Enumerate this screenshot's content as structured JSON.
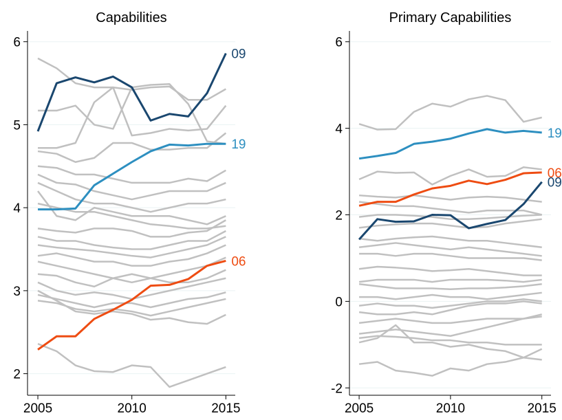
{
  "chart_data": [
    {
      "type": "line",
      "title": "Capabilities",
      "x": [
        2005,
        2006,
        2007,
        2008,
        2009,
        2010,
        2011,
        2012,
        2013,
        2014,
        2015
      ],
      "xlim": [
        2004.45,
        2015.5
      ],
      "xticks": [
        2005,
        2010,
        2015
      ],
      "ylim": [
        1.74,
        6.13
      ],
      "yticks": [
        2,
        3,
        4,
        5,
        6
      ],
      "grid": true,
      "series": [
        {
          "color": "#c0c0c0",
          "values": [
            5.8,
            5.68,
            5.5,
            5.45,
            5.45,
            5.42,
            5.45,
            5.46,
            5.3,
            5.3,
            5.43
          ]
        },
        {
          "color": "#c0c0c0",
          "values": [
            5.17,
            5.17,
            5.23,
            5.0,
            4.95,
            5.45,
            5.48,
            5.49,
            5.25,
            4.8,
            4.77
          ]
        },
        {
          "color": "#c0c0c0",
          "values": [
            4.72,
            4.72,
            4.78,
            5.27,
            5.45,
            4.87,
            4.9,
            4.95,
            4.93,
            4.95,
            5.23
          ]
        },
        {
          "color": "#c0c0c0",
          "values": [
            4.68,
            4.65,
            4.55,
            4.6,
            4.78,
            4.78,
            4.7,
            4.7,
            4.72,
            4.72,
            4.9
          ]
        },
        {
          "color": "#c0c0c0",
          "values": [
            4.5,
            4.48,
            4.4,
            4.4,
            4.35,
            4.3,
            4.3,
            4.3,
            4.35,
            4.32,
            4.45
          ]
        },
        {
          "color": "#c0c0c0",
          "values": [
            4.4,
            4.3,
            4.28,
            4.2,
            4.15,
            4.1,
            4.15,
            4.2,
            4.2,
            4.2,
            4.3
          ]
        },
        {
          "color": "#c0c0c0",
          "values": [
            4.3,
            4.2,
            4.1,
            4.05,
            4.05,
            4.0,
            3.95,
            4.0,
            4.05,
            4.05,
            4.1
          ]
        },
        {
          "color": "#c0c0c0",
          "values": [
            4.2,
            3.9,
            3.85,
            4.0,
            3.95,
            3.9,
            3.9,
            3.9,
            3.85,
            3.8,
            3.9
          ]
        },
        {
          "color": "#c0c0c0",
          "values": [
            4.05,
            4.0,
            3.95,
            3.95,
            3.9,
            3.85,
            3.8,
            3.78,
            3.75,
            3.75,
            3.78
          ]
        },
        {
          "color": "#c0c0c0",
          "values": [
            3.75,
            3.72,
            3.7,
            3.75,
            3.75,
            3.72,
            3.65,
            3.65,
            3.7,
            3.72,
            3.85
          ]
        },
        {
          "color": "#c0c0c0",
          "values": [
            3.65,
            3.6,
            3.6,
            3.55,
            3.52,
            3.5,
            3.5,
            3.55,
            3.6,
            3.6,
            3.72
          ]
        },
        {
          "color": "#c0c0c0",
          "values": [
            3.55,
            3.52,
            3.5,
            3.48,
            3.45,
            3.42,
            3.4,
            3.45,
            3.5,
            3.55,
            3.65
          ]
        },
        {
          "color": "#c0c0c0",
          "values": [
            3.42,
            3.45,
            3.4,
            3.35,
            3.35,
            3.3,
            3.3,
            3.35,
            3.38,
            3.45,
            3.55
          ]
        },
        {
          "color": "#c0c0c0",
          "values": [
            3.35,
            3.3,
            3.25,
            3.2,
            3.15,
            3.1,
            3.15,
            3.2,
            3.25,
            3.3,
            3.4
          ]
        },
        {
          "color": "#c0c0c0",
          "values": [
            3.2,
            3.18,
            3.1,
            3.05,
            3.15,
            3.2,
            3.15,
            3.1,
            3.1,
            3.15,
            3.25
          ]
        },
        {
          "color": "#c0c0c0",
          "values": [
            3.1,
            3.0,
            2.95,
            2.98,
            2.95,
            2.9,
            2.95,
            3.0,
            3.05,
            3.1,
            3.15
          ]
        },
        {
          "color": "#c0c0c0",
          "values": [
            2.95,
            2.9,
            2.85,
            2.8,
            2.85,
            2.85,
            2.8,
            2.85,
            2.9,
            2.92,
            2.98
          ]
        },
        {
          "color": "#c0c0c0",
          "values": [
            2.88,
            2.85,
            2.78,
            2.75,
            2.78,
            2.75,
            2.7,
            2.75,
            2.8,
            2.85,
            2.9
          ]
        },
        {
          "color": "#c0c0c0",
          "values": [
            3.0,
            2.88,
            2.75,
            2.72,
            2.75,
            2.72,
            2.65,
            2.67,
            2.62,
            2.6,
            2.71
          ]
        },
        {
          "color": "#c0c0c0",
          "values": [
            2.36,
            2.27,
            2.1,
            2.03,
            2.02,
            2.1,
            2.08,
            1.84,
            1.92,
            2.0,
            2.08
          ]
        },
        {
          "name": "09",
          "color": "#1a476f",
          "values": [
            4.92,
            5.5,
            5.57,
            5.51,
            5.58,
            5.45,
            5.05,
            5.13,
            5.1,
            5.38,
            5.86
          ]
        },
        {
          "name": "19",
          "color": "#2d8fc0",
          "values": [
            3.98,
            3.98,
            3.99,
            4.27,
            4.41,
            4.55,
            4.68,
            4.76,
            4.75,
            4.77,
            4.77
          ]
        },
        {
          "name": "06",
          "color": "#ee4c12",
          "values": [
            2.29,
            2.45,
            2.45,
            2.66,
            2.77,
            2.89,
            3.06,
            3.07,
            3.14,
            3.3,
            3.36
          ]
        }
      ]
    },
    {
      "type": "line",
      "title": "Primary Capabilities",
      "x": [
        2005,
        2006,
        2007,
        2008,
        2009,
        2010,
        2011,
        2012,
        2013,
        2014,
        2015
      ],
      "xlim": [
        2004.47,
        2015.5
      ],
      "xticks": [
        2005,
        2010,
        2015
      ],
      "ylim": [
        -2.17,
        6.25
      ],
      "yticks": [
        -2,
        0,
        2,
        4,
        6
      ],
      "grid": true,
      "series": [
        {
          "color": "#c0c0c0",
          "values": [
            4.1,
            3.97,
            3.98,
            4.38,
            4.57,
            4.5,
            4.67,
            4.75,
            4.65,
            4.15,
            4.25
          ]
        },
        {
          "color": "#c0c0c0",
          "values": [
            2.82,
            3.0,
            2.97,
            2.98,
            2.7,
            2.9,
            3.05,
            2.88,
            2.9,
            3.1,
            3.05
          ]
        },
        {
          "color": "#c0c0c0",
          "values": [
            2.45,
            2.42,
            2.4,
            2.45,
            2.4,
            2.35,
            2.4,
            2.42,
            2.4,
            2.35,
            2.3
          ]
        },
        {
          "color": "#c0c0c0",
          "values": [
            2.3,
            2.25,
            2.2,
            2.2,
            2.15,
            2.1,
            2.05,
            2.1,
            2.1,
            2.1,
            2.0
          ]
        },
        {
          "color": "#c0c0c0",
          "values": [
            1.95,
            2.0,
            2.0,
            1.98,
            1.95,
            1.9,
            1.9,
            1.92,
            1.95,
            1.98,
            2.0
          ]
        },
        {
          "color": "#c0c0c0",
          "values": [
            1.7,
            1.75,
            1.78,
            1.8,
            1.8,
            1.75,
            1.7,
            1.72,
            1.8,
            1.85,
            1.9
          ]
        },
        {
          "color": "#c0c0c0",
          "values": [
            1.45,
            1.4,
            1.45,
            1.48,
            1.5,
            1.45,
            1.4,
            1.4,
            1.35,
            1.3,
            1.25
          ]
        },
        {
          "color": "#c0c0c0",
          "values": [
            1.25,
            1.3,
            1.35,
            1.3,
            1.25,
            1.2,
            1.25,
            1.2,
            1.15,
            1.1,
            1.05
          ]
        },
        {
          "color": "#c0c0c0",
          "values": [
            1.1,
            1.1,
            1.05,
            1.1,
            1.1,
            1.05,
            1.0,
            1.0,
            1.0,
            1.0,
            0.95
          ]
        },
        {
          "color": "#c0c0c0",
          "values": [
            0.75,
            0.8,
            0.78,
            0.75,
            0.7,
            0.72,
            0.75,
            0.7,
            0.65,
            0.6,
            0.6
          ]
        },
        {
          "color": "#c0c0c0",
          "values": [
            0.45,
            0.5,
            0.5,
            0.5,
            0.45,
            0.5,
            0.5,
            0.5,
            0.48,
            0.45,
            0.5
          ]
        },
        {
          "color": "#c0c0c0",
          "values": [
            0.4,
            0.35,
            0.3,
            0.3,
            0.3,
            0.28,
            0.3,
            0.3,
            0.32,
            0.35,
            0.4
          ]
        },
        {
          "color": "#c0c0c0",
          "values": [
            0.1,
            0.1,
            0.05,
            0.1,
            0.15,
            0.1,
            0.1,
            0.05,
            0.1,
            0.15,
            0.2
          ]
        },
        {
          "color": "#c0c0c0",
          "values": [
            -0.1,
            -0.05,
            -0.1,
            -0.1,
            -0.15,
            -0.1,
            -0.05,
            0.0,
            0.0,
            0.05,
            0.0
          ]
        },
        {
          "color": "#c0c0c0",
          "values": [
            -0.25,
            -0.3,
            -0.3,
            -0.25,
            -0.3,
            -0.2,
            -0.1,
            -0.05,
            -0.05,
            0.0,
            -0.05
          ]
        },
        {
          "color": "#c0c0c0",
          "values": [
            -0.5,
            -0.45,
            -0.4,
            -0.45,
            -0.5,
            -0.5,
            -0.45,
            -0.4,
            -0.4,
            -0.4,
            -0.3
          ]
        },
        {
          "color": "#c0c0c0",
          "values": [
            -0.75,
            -0.7,
            -0.65,
            -0.7,
            -0.75,
            -0.8,
            -0.7,
            -0.6,
            -0.5,
            -0.4,
            -0.35
          ]
        },
        {
          "color": "#c0c0c0",
          "values": [
            -0.85,
            -0.8,
            -0.82,
            -0.85,
            -0.9,
            -0.9,
            -0.95,
            -0.95,
            -1.0,
            -1.0,
            -1.0
          ]
        },
        {
          "color": "#c0c0c0",
          "values": [
            -0.95,
            -0.85,
            -0.55,
            -0.95,
            -0.95,
            -1.05,
            -1.0,
            -1.1,
            -1.15,
            -1.3,
            -1.35
          ]
        },
        {
          "color": "#c0c0c0",
          "values": [
            -1.45,
            -1.4,
            -1.6,
            -1.65,
            -1.72,
            -1.55,
            -1.6,
            -1.45,
            -1.4,
            -1.3,
            -1.1
          ]
        },
        {
          "name": "19",
          "color": "#2d8fc0",
          "values": [
            3.3,
            3.36,
            3.43,
            3.64,
            3.69,
            3.76,
            3.88,
            3.98,
            3.9,
            3.94,
            3.9
          ]
        },
        {
          "name": "06",
          "color": "#ee4c12",
          "values": [
            2.21,
            2.3,
            2.3,
            2.47,
            2.61,
            2.67,
            2.79,
            2.71,
            2.81,
            2.96,
            2.98
          ]
        },
        {
          "name": "09",
          "color": "#1a476f",
          "values": [
            1.43,
            1.9,
            1.84,
            1.85,
            2.0,
            1.99,
            1.69,
            1.79,
            1.88,
            2.25,
            2.76
          ]
        }
      ]
    }
  ]
}
